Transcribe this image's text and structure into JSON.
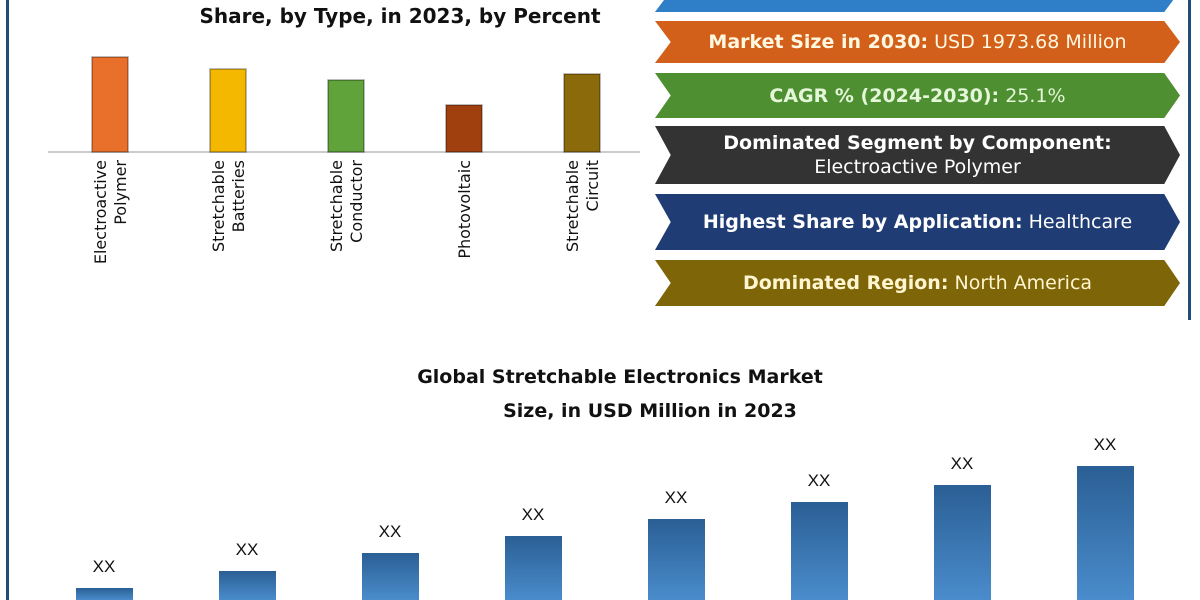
{
  "chart_data": [
    {
      "type": "bar",
      "title": "Share, by Type, in 2023, by Percent",
      "categories": [
        "Electroactive Polymer",
        "Stretchable Batteries",
        "Stretchable Conductor",
        "Photovoltaic",
        "Stretchable Circuit"
      ],
      "values": [
        95,
        83,
        72,
        47,
        78
      ],
      "colors": [
        "#e8702a",
        "#f5b800",
        "#5fa33a",
        "#a0400e",
        "#8a6a0a"
      ],
      "ylim": [
        0,
        100
      ],
      "grid": false
    },
    {
      "type": "bar",
      "title": "Global Stretchable Electronics Market Size, in USD Million in 2023",
      "title_lines": [
        "Global Stretchable Electronics Market",
        "Size, in USD Million in 2023"
      ],
      "categories": [
        "",
        "",
        "",
        "",
        "",
        "",
        "",
        ""
      ],
      "values": [
        12,
        29,
        47,
        64,
        81,
        98,
        115,
        134
      ],
      "data_labels": [
        "XX",
        "XX",
        "XX",
        "XX",
        "XX",
        "XX",
        "XX",
        "XX"
      ],
      "color": "#2e6da4",
      "grid": false
    }
  ],
  "banners": [
    {
      "label": "",
      "value": "",
      "color": "#2e7ec8"
    },
    {
      "label": "Market Size in 2030:",
      "value": " USD 1973.68 Million",
      "color": "#d2601a"
    },
    {
      "label": "CAGR % (2024-2030):",
      "value": " 25.1%",
      "color": "#4e8f32"
    },
    {
      "label": "Dominated Segment by Component:",
      "value": "Electroactive Polymer",
      "color": "#333333"
    },
    {
      "label": "Highest Share by Application:",
      "value": " Healthcare",
      "color": "#1f3c74"
    },
    {
      "label": "Dominated Region:",
      "value": " North America",
      "color": "#7e6508"
    }
  ]
}
